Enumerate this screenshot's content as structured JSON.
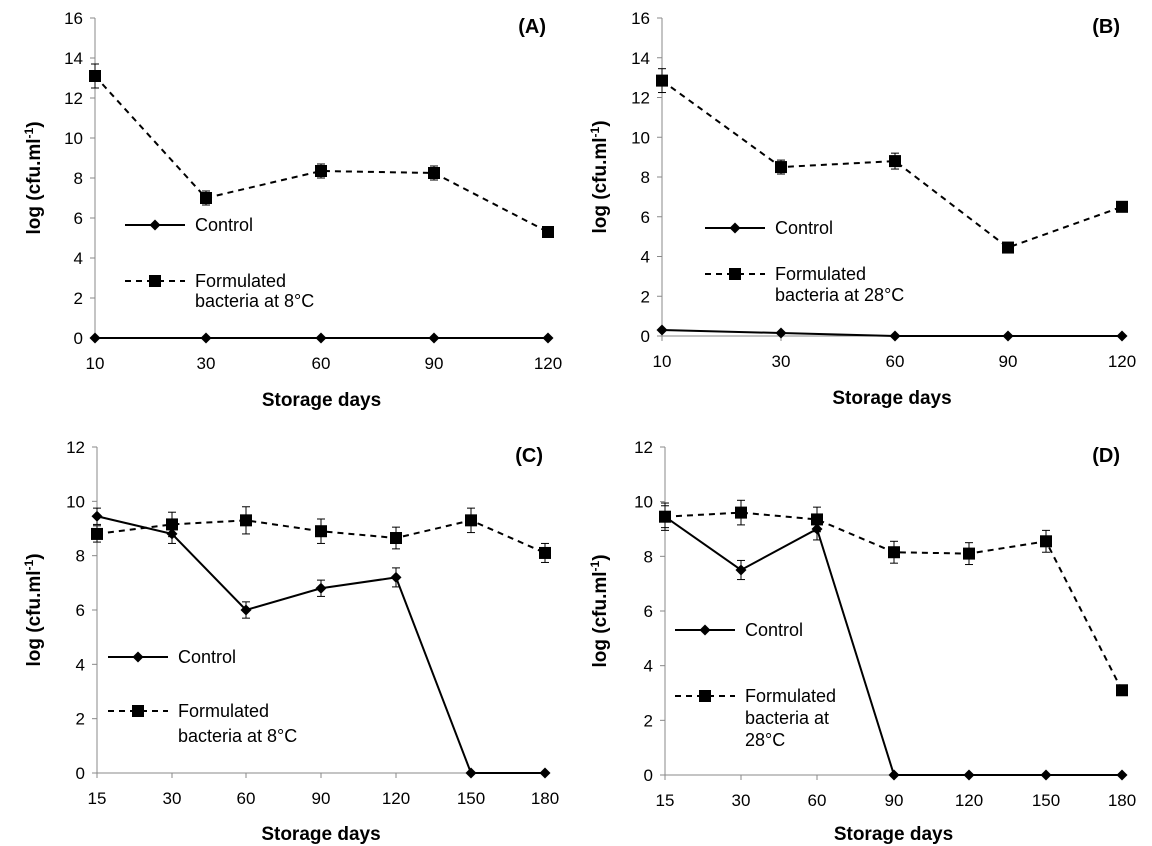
{
  "chart_data": [
    {
      "panel": "(A)",
      "type": "line",
      "categories": [
        "10",
        "30",
        "60",
        "90",
        "120"
      ],
      "xlabel": "Storage days",
      "ylabel": "log (cfu.ml",
      "ylabel_superscript": "-1",
      "ylabel_close": ")",
      "ylim": [
        0,
        16
      ],
      "yticks": [
        "0",
        "2",
        "4",
        "6",
        "8",
        "10",
        "12",
        "14",
        "16"
      ],
      "grid": false,
      "legend_placement": "left-middle",
      "series": [
        {
          "name": "Control",
          "marker": "diamond",
          "line": "solid",
          "values": [
            0,
            0,
            0,
            0,
            0
          ],
          "errors": [
            0,
            0,
            0,
            0,
            0
          ]
        },
        {
          "name": [
            "Formulated",
            "bacteria at 8°C"
          ],
          "marker": "square",
          "line": "dashed",
          "values": [
            13.1,
            7.0,
            8.35,
            8.25,
            5.3
          ],
          "errors": [
            0.6,
            0.35,
            0.35,
            0.35,
            0.2
          ]
        }
      ]
    },
    {
      "panel": "(B)",
      "type": "line",
      "categories": [
        "10",
        "30",
        "60",
        "90",
        "120"
      ],
      "xlabel": "Storage days",
      "ylabel": "log (cfu.ml",
      "ylabel_superscript": "-1",
      "ylabel_close": ")",
      "ylim": [
        0,
        16
      ],
      "yticks": [
        "0",
        "2",
        "4",
        "6",
        "8",
        "10",
        "12",
        "14",
        "16"
      ],
      "grid": false,
      "legend_placement": "left-middle",
      "series": [
        {
          "name": "Control",
          "marker": "diamond",
          "line": "solid",
          "values": [
            0.3,
            0.15,
            0,
            0,
            0
          ],
          "errors": [
            0,
            0,
            0,
            0,
            0
          ]
        },
        {
          "name": [
            "Formulated",
            "bacteria at 28°C"
          ],
          "marker": "square",
          "line": "dashed",
          "values": [
            12.85,
            8.5,
            8.8,
            4.45,
            6.5
          ],
          "errors": [
            0.6,
            0.35,
            0.4,
            0.2,
            0.25
          ]
        }
      ]
    },
    {
      "panel": "(C)",
      "type": "line",
      "categories": [
        "15",
        "30",
        "60",
        "90",
        "120",
        "150",
        "180"
      ],
      "xlabel": "Storage days",
      "ylabel": "log (cfu.ml",
      "ylabel_superscript": "-1",
      "ylabel_close": ")",
      "ylim": [
        0,
        12
      ],
      "yticks": [
        "0",
        "2",
        "4",
        "6",
        "8",
        "10",
        "12"
      ],
      "grid": false,
      "legend_placement": "left-lower",
      "series": [
        {
          "name": "Control",
          "marker": "diamond",
          "line": "solid",
          "values": [
            9.45,
            8.8,
            6.0,
            6.8,
            7.2,
            0,
            0
          ],
          "errors": [
            0.3,
            0.35,
            0.3,
            0.3,
            0.35,
            0,
            0
          ]
        },
        {
          "name": [
            "Formulated",
            "bacteria at 8°C"
          ],
          "marker": "square",
          "line": "dashed",
          "values": [
            8.8,
            9.15,
            9.3,
            8.9,
            8.65,
            9.3,
            8.1
          ],
          "errors": [
            0.3,
            0.45,
            0.5,
            0.45,
            0.4,
            0.45,
            0.35
          ]
        }
      ]
    },
    {
      "panel": "(D)",
      "type": "line",
      "categories": [
        "15",
        "30",
        "60",
        "90",
        "120",
        "150",
        "180"
      ],
      "xlabel": "Storage days",
      "ylabel": "log (cfu.ml",
      "ylabel_superscript": "-1",
      "ylabel_close": ")",
      "ylim": [
        0,
        12
      ],
      "yticks": [
        "0",
        "2",
        "4",
        "6",
        "8",
        "10",
        "12"
      ],
      "grid": false,
      "legend_placement": "left-lower",
      "series": [
        {
          "name": "Control",
          "marker": "diamond",
          "line": "solid",
          "values": [
            9.45,
            7.5,
            9.0,
            0,
            0,
            0,
            0
          ],
          "errors": [
            0.4,
            0.35,
            0.4,
            0,
            0,
            0,
            0
          ]
        },
        {
          "name": [
            "Formulated",
            "bacteria at",
            "28°C"
          ],
          "marker": "square",
          "line": "dashed",
          "values": [
            9.45,
            9.6,
            9.35,
            8.15,
            8.1,
            8.55,
            3.1
          ],
          "errors": [
            0.5,
            0.45,
            0.45,
            0.4,
            0.4,
            0.4,
            0.15
          ]
        }
      ]
    }
  ]
}
